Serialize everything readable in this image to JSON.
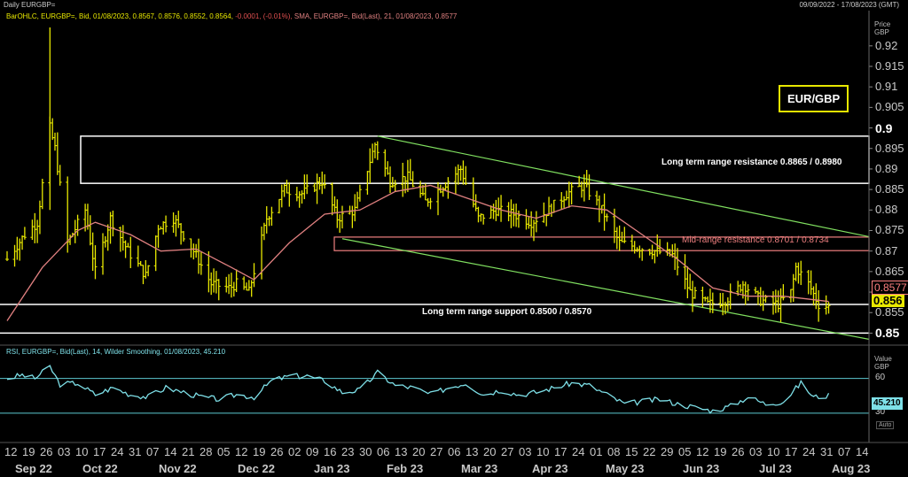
{
  "header": {
    "title": "Daily EURGBP=",
    "date_range": "09/09/2022 - 17/08/2023 (GMT)"
  },
  "legend": {
    "ohlc": "BarOHLC, EURGBP=, Bid, 01/08/2023, 0.8567, 0.8576, 0.8552, 0.8564,",
    "change": "-0.0001, (-0.01%),",
    "sma": "SMA, EURGBP=, Bid(Last), 21, 01/08/2023, 0.8577"
  },
  "rsi_legend": "RSI, EURGBP=, Bid(Last), 14, Wilder Smoothing, 01/08/2023, 45.210",
  "price_axis": {
    "unit": [
      "Price",
      "GBP"
    ],
    "ticks": [
      "0.92",
      "0.915",
      "0.91",
      "0.905",
      "0.9",
      "0.895",
      "0.89",
      "0.885",
      "0.88",
      "0.875",
      "0.87",
      "0.865",
      "0.86",
      "0.855",
      "0.85"
    ],
    "sma_tag": "0.8577",
    "last_tag": "0.856",
    "colors": {
      "sma_tag_bg": "#000000",
      "sma_tag_fg": "#ff8080",
      "last_tag_bg": "#e8e800",
      "last_tag_fg": "#000000"
    }
  },
  "rsi_axis": {
    "unit": [
      "Value",
      "GBP"
    ],
    "ticks": [
      "60",
      "30"
    ],
    "tag": "45.210",
    "auto": "Auto"
  },
  "pair_label": "EUR/GBP",
  "annotations": {
    "resistance": "Long term range resistance 0.8865 / 0.8980",
    "mid": "Mid-range resistance 0.8701 / 0.8734",
    "support": "Long term range support 0.8500 / 0.8570"
  },
  "x_axis": {
    "days": [
      "12",
      "19",
      "26",
      "03",
      "10",
      "17",
      "24",
      "31",
      "07",
      "14",
      "21",
      "28",
      "05",
      "12",
      "19",
      "26",
      "02",
      "09",
      "16",
      "23",
      "30",
      "06",
      "13",
      "20",
      "27",
      "06",
      "13",
      "20",
      "27",
      "03",
      "10",
      "17",
      "24",
      "01",
      "08",
      "15",
      "22",
      "29",
      "05",
      "12",
      "19",
      "26",
      "03",
      "10",
      "17",
      "24",
      "31",
      "07",
      "14"
    ],
    "months": [
      "Sep 22",
      "Oct 22",
      "Nov 22",
      "Dec 22",
      "Jan 23",
      "Feb 23",
      "Mar 23",
      "Apr 23",
      "May 23",
      "Jun 23",
      "Jul 23",
      "Aug 23"
    ]
  },
  "chart_data": [
    {
      "type": "line",
      "title": "Daily EURGBP=",
      "ylabel": "Price GBP",
      "ylim": [
        0.8475,
        0.926
      ],
      "x_range": [
        "2022-09-09",
        "2023-08-17"
      ],
      "series": [
        {
          "name": "BarOHLC, EURGBP=, Bid",
          "color": "#e8e800",
          "anchors": [
            {
              "x": "2022-09-09",
              "y": 0.868
            },
            {
              "x": "2022-09-16",
              "y": 0.874
            },
            {
              "x": "2022-09-21",
              "y": 0.877
            },
            {
              "x": "2022-09-26",
              "y": 0.9
            },
            {
              "x": "2022-09-28",
              "y": 0.895
            },
            {
              "x": "2022-10-03",
              "y": 0.872
            },
            {
              "x": "2022-10-10",
              "y": 0.88
            },
            {
              "x": "2022-10-14",
              "y": 0.865
            },
            {
              "x": "2022-10-20",
              "y": 0.878
            },
            {
              "x": "2022-10-27",
              "y": 0.87
            },
            {
              "x": "2022-11-03",
              "y": 0.864
            },
            {
              "x": "2022-11-08",
              "y": 0.876
            },
            {
              "x": "2022-11-14",
              "y": 0.878
            },
            {
              "x": "2022-11-22",
              "y": 0.87
            },
            {
              "x": "2022-11-29",
              "y": 0.862
            },
            {
              "x": "2022-12-06",
              "y": 0.861
            },
            {
              "x": "2022-12-09",
              "y": 0.862
            },
            {
              "x": "2022-12-14",
              "y": 0.86
            },
            {
              "x": "2022-12-21",
              "y": 0.878
            },
            {
              "x": "2022-12-28",
              "y": 0.885
            },
            {
              "x": "2023-01-04",
              "y": 0.884
            },
            {
              "x": "2023-01-12",
              "y": 0.887
            },
            {
              "x": "2023-01-18",
              "y": 0.878
            },
            {
              "x": "2023-01-25",
              "y": 0.88
            },
            {
              "x": "2023-02-02",
              "y": 0.896
            },
            {
              "x": "2023-02-08",
              "y": 0.887
            },
            {
              "x": "2023-02-15",
              "y": 0.888
            },
            {
              "x": "2023-02-22",
              "y": 0.882
            },
            {
              "x": "2023-03-01",
              "y": 0.886
            },
            {
              "x": "2023-03-08",
              "y": 0.89
            },
            {
              "x": "2023-03-15",
              "y": 0.878
            },
            {
              "x": "2023-03-22",
              "y": 0.88
            },
            {
              "x": "2023-03-29",
              "y": 0.879
            },
            {
              "x": "2023-04-05",
              "y": 0.877
            },
            {
              "x": "2023-04-12",
              "y": 0.88
            },
            {
              "x": "2023-04-19",
              "y": 0.884
            },
            {
              "x": "2023-04-26",
              "y": 0.886
            },
            {
              "x": "2023-05-03",
              "y": 0.88
            },
            {
              "x": "2023-05-10",
              "y": 0.872
            },
            {
              "x": "2023-05-17",
              "y": 0.871
            },
            {
              "x": "2023-05-24",
              "y": 0.87
            },
            {
              "x": "2023-05-31",
              "y": 0.869
            },
            {
              "x": "2023-06-07",
              "y": 0.86
            },
            {
              "x": "2023-06-14",
              "y": 0.857
            },
            {
              "x": "2023-06-21",
              "y": 0.858
            },
            {
              "x": "2023-06-28",
              "y": 0.862
            },
            {
              "x": "2023-07-05",
              "y": 0.858
            },
            {
              "x": "2023-07-12",
              "y": 0.857
            },
            {
              "x": "2023-07-17",
              "y": 0.86
            },
            {
              "x": "2023-07-19",
              "y": 0.866
            },
            {
              "x": "2023-07-24",
              "y": 0.862
            },
            {
              "x": "2023-07-28",
              "y": 0.857
            },
            {
              "x": "2023-08-01",
              "y": 0.8564
            }
          ]
        },
        {
          "name": "SMA, EURGBP=, Bid(Last), 21",
          "color": "#e08080",
          "anchors": [
            {
              "x": "2022-09-09",
              "y": 0.853
            },
            {
              "x": "2022-09-23",
              "y": 0.866
            },
            {
              "x": "2022-10-07",
              "y": 0.875
            },
            {
              "x": "2022-10-14",
              "y": 0.877
            },
            {
              "x": "2022-10-28",
              "y": 0.874
            },
            {
              "x": "2022-11-09",
              "y": 0.87
            },
            {
              "x": "2022-11-23",
              "y": 0.8705
            },
            {
              "x": "2022-12-07",
              "y": 0.866
            },
            {
              "x": "2022-12-16",
              "y": 0.863
            },
            {
              "x": "2022-12-30",
              "y": 0.872
            },
            {
              "x": "2023-01-13",
              "y": 0.879
            },
            {
              "x": "2023-01-27",
              "y": 0.88
            },
            {
              "x": "2023-02-10",
              "y": 0.8845
            },
            {
              "x": "2023-02-24",
              "y": 0.886
            },
            {
              "x": "2023-03-10",
              "y": 0.883
            },
            {
              "x": "2023-03-24",
              "y": 0.88
            },
            {
              "x": "2023-04-07",
              "y": 0.878
            },
            {
              "x": "2023-04-21",
              "y": 0.881
            },
            {
              "x": "2023-05-05",
              "y": 0.88
            },
            {
              "x": "2023-05-19",
              "y": 0.874
            },
            {
              "x": "2023-06-02",
              "y": 0.868
            },
            {
              "x": "2023-06-16",
              "y": 0.861
            },
            {
              "x": "2023-06-30",
              "y": 0.859
            },
            {
              "x": "2023-07-14",
              "y": 0.859
            },
            {
              "x": "2023-07-28",
              "y": 0.858
            },
            {
              "x": "2023-08-01",
              "y": 0.8577
            }
          ]
        }
      ],
      "levels": [
        {
          "label": "Long term range resistance 0.8865 / 0.8980",
          "low": 0.8865,
          "high": 0.898,
          "color": "#ffffff"
        },
        {
          "label": "Mid-range resistance 0.8701 / 0.8734",
          "low": 0.8701,
          "high": 0.8734,
          "color": "#f08080"
        },
        {
          "label": "Long term range support 0.8500 / 0.8570",
          "low": 0.85,
          "high": 0.857,
          "color": "#ffffff"
        }
      ],
      "trend_channel": {
        "color": "#80e060",
        "upper": [
          {
            "x": "2023-02-03",
            "y": 0.898
          },
          {
            "x": "2023-08-17",
            "y": 0.8735
          }
        ],
        "lower": [
          {
            "x": "2023-01-20",
            "y": 0.873
          },
          {
            "x": "2023-08-17",
            "y": 0.8485
          }
        ]
      }
    },
    {
      "type": "line",
      "title": "RSI, EURGBP=, Bid(Last), 14, Wilder Smoothing",
      "ylabel": "Value GBP",
      "ylim": [
        20,
        75
      ],
      "reference_lines": [
        60,
        30
      ],
      "series": [
        {
          "name": "RSI 14",
          "color": "#7ee0e8",
          "anchors": [
            {
              "x": "2022-09-09",
              "y": 60
            },
            {
              "x": "2022-09-15",
              "y": 63
            },
            {
              "x": "2022-09-20",
              "y": 60
            },
            {
              "x": "2022-09-26",
              "y": 70
            },
            {
              "x": "2022-09-30",
              "y": 55
            },
            {
              "x": "2022-10-07",
              "y": 56
            },
            {
              "x": "2022-10-14",
              "y": 46
            },
            {
              "x": "2022-10-21",
              "y": 52
            },
            {
              "x": "2022-10-28",
              "y": 46
            },
            {
              "x": "2022-11-04",
              "y": 44
            },
            {
              "x": "2022-11-11",
              "y": 52
            },
            {
              "x": "2022-11-18",
              "y": 48
            },
            {
              "x": "2022-11-25",
              "y": 44
            },
            {
              "x": "2022-12-02",
              "y": 42
            },
            {
              "x": "2022-12-09",
              "y": 46
            },
            {
              "x": "2022-12-16",
              "y": 44
            },
            {
              "x": "2022-12-23",
              "y": 58
            },
            {
              "x": "2022-12-30",
              "y": 62
            },
            {
              "x": "2023-01-06",
              "y": 62
            },
            {
              "x": "2023-01-13",
              "y": 58
            },
            {
              "x": "2023-01-20",
              "y": 48
            },
            {
              "x": "2023-01-27",
              "y": 50
            },
            {
              "x": "2023-02-03",
              "y": 65
            },
            {
              "x": "2023-02-10",
              "y": 54
            },
            {
              "x": "2023-02-17",
              "y": 52
            },
            {
              "x": "2023-02-24",
              "y": 46
            },
            {
              "x": "2023-03-03",
              "y": 52
            },
            {
              "x": "2023-03-10",
              "y": 56
            },
            {
              "x": "2023-03-17",
              "y": 46
            },
            {
              "x": "2023-03-24",
              "y": 50
            },
            {
              "x": "2023-03-31",
              "y": 46
            },
            {
              "x": "2023-04-07",
              "y": 48
            },
            {
              "x": "2023-04-14",
              "y": 52
            },
            {
              "x": "2023-04-21",
              "y": 56
            },
            {
              "x": "2023-04-28",
              "y": 54
            },
            {
              "x": "2023-05-05",
              "y": 46
            },
            {
              "x": "2023-05-12",
              "y": 38
            },
            {
              "x": "2023-05-19",
              "y": 40
            },
            {
              "x": "2023-05-26",
              "y": 42
            },
            {
              "x": "2023-06-02",
              "y": 38
            },
            {
              "x": "2023-06-09",
              "y": 35
            },
            {
              "x": "2023-06-16",
              "y": 32
            },
            {
              "x": "2023-06-23",
              "y": 36
            },
            {
              "x": "2023-06-30",
              "y": 44
            },
            {
              "x": "2023-07-07",
              "y": 38
            },
            {
              "x": "2023-07-14",
              "y": 40
            },
            {
              "x": "2023-07-21",
              "y": 56
            },
            {
              "x": "2023-07-26",
              "y": 44
            },
            {
              "x": "2023-08-01",
              "y": 45.21
            }
          ]
        }
      ]
    }
  ]
}
